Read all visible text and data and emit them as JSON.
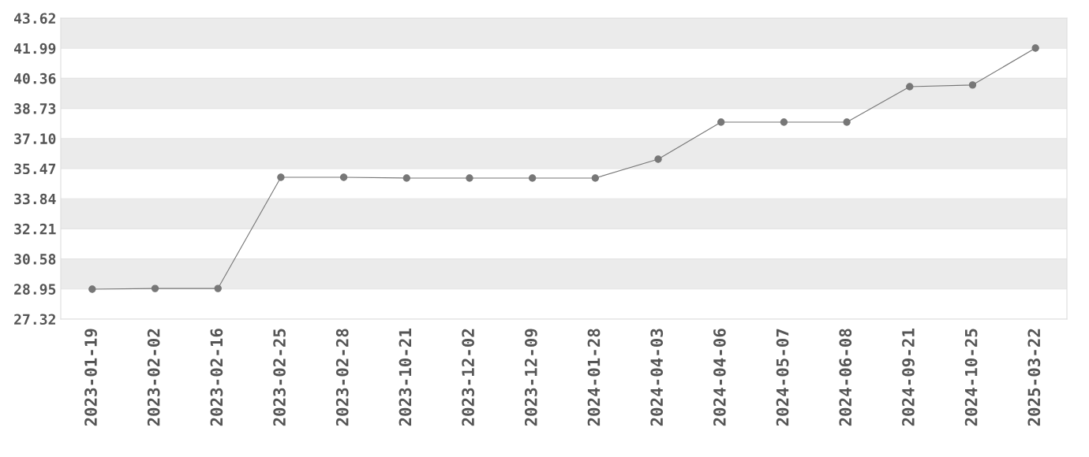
{
  "chart_data": {
    "type": "line",
    "categories": [
      "2023-01-19",
      "2023-02-02",
      "2023-02-16",
      "2023-02-25",
      "2023-02-28",
      "2023-10-21",
      "2023-12-02",
      "2023-12-09",
      "2024-01-28",
      "2024-04-03",
      "2024-04-06",
      "2024-05-07",
      "2024-06-08",
      "2024-09-21",
      "2024-10-25",
      "2025-03-22"
    ],
    "series": [
      {
        "color": "#777777",
        "values": [
          28.94,
          28.98,
          28.98,
          35.0,
          35.0,
          34.96,
          34.96,
          34.96,
          34.96,
          35.98,
          37.99,
          37.99,
          37.99,
          39.91,
          40.0,
          42.0
        ]
      }
    ],
    "ylim": [
      27.32,
      43.62
    ],
    "yticks": [
      27.32,
      28.95,
      30.58,
      32.21,
      33.84,
      35.47,
      {
        "value": 37.1,
        "label": "37.10"
      },
      38.73,
      40.36,
      41.99,
      43.62
    ],
    "grid": "y",
    "marker": "circle",
    "line_style": "solid"
  }
}
